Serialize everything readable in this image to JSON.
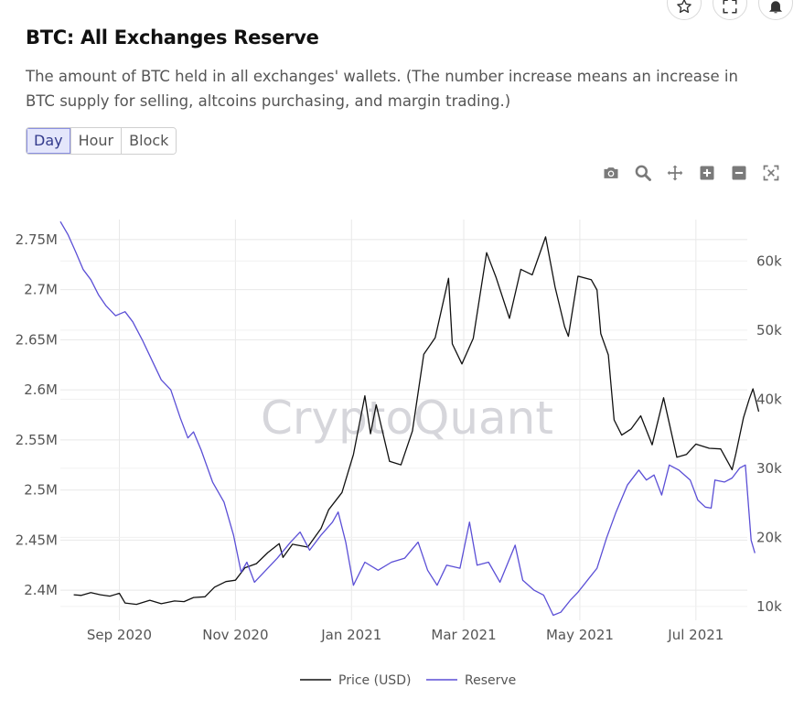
{
  "header": {
    "title": "BTC: All Exchanges Reserve",
    "description": "The amount of BTC held in all exchanges' wallets. (The number increase means an increase in BTC supply for selling, altcoins purchasing, and margin trading.)"
  },
  "top_icons": [
    "star-icon",
    "fullscreen-icon",
    "bell-icon"
  ],
  "range_tabs": {
    "day": "Day",
    "hour": "Hour",
    "block": "Block",
    "selected": "Day"
  },
  "modebar": [
    "camera-icon",
    "zoom-icon",
    "pan-icon",
    "zoom-in-icon",
    "zoom-out-icon",
    "autoscale-icon"
  ],
  "watermark": "CryptoQuant",
  "colors": {
    "price": "#111111",
    "reserve": "#5b4fd6",
    "grid": "#e8e8e8",
    "active_tab_bg": "#e4e6fb"
  },
  "chart_data": {
    "type": "line",
    "x_range": [
      "2020-08-01",
      "2021-07-28"
    ],
    "x_ticks": [
      {
        "date": "2020-09-01",
        "label": "Sep 2020"
      },
      {
        "date": "2020-11-01",
        "label": "Nov 2020"
      },
      {
        "date": "2021-01-01",
        "label": "Jan 2021"
      },
      {
        "date": "2021-03-01",
        "label": "Mar 2021"
      },
      {
        "date": "2021-05-01",
        "label": "May 2021"
      },
      {
        "date": "2021-07-01",
        "label": "Jul 2021"
      }
    ],
    "y_left": {
      "range": [
        2.37,
        2.77
      ],
      "ticks": [
        2.4,
        2.45,
        2.5,
        2.55,
        2.6,
        2.65,
        2.7,
        2.75
      ],
      "tick_labels": [
        "2.4M",
        "2.45M",
        "2.5M",
        "2.55M",
        "2.6M",
        "2.65M",
        "2.7M",
        "2.75M"
      ]
    },
    "y_right": {
      "range": [
        8,
        66
      ],
      "ticks": [
        10,
        20,
        30,
        40,
        50,
        60
      ],
      "tick_labels": [
        "10k",
        "20k",
        "30k",
        "40k",
        "50k",
        "60k"
      ]
    },
    "grid": true,
    "legend_position": "bottom-center",
    "series": [
      {
        "name": "Price (USD)",
        "axis": "right",
        "unit": "k USD",
        "points": [
          [
            "2020-08-08",
            11.7
          ],
          [
            "2020-08-12",
            11.6
          ],
          [
            "2020-08-17",
            12.0
          ],
          [
            "2020-08-22",
            11.7
          ],
          [
            "2020-08-27",
            11.5
          ],
          [
            "2020-09-01",
            11.9
          ],
          [
            "2020-09-04",
            10.5
          ],
          [
            "2020-09-10",
            10.3
          ],
          [
            "2020-09-17",
            10.9
          ],
          [
            "2020-09-23",
            10.4
          ],
          [
            "2020-09-30",
            10.8
          ],
          [
            "2020-10-05",
            10.7
          ],
          [
            "2020-10-10",
            11.3
          ],
          [
            "2020-10-16",
            11.4
          ],
          [
            "2020-10-21",
            12.8
          ],
          [
            "2020-10-27",
            13.6
          ],
          [
            "2020-11-01",
            13.8
          ],
          [
            "2020-11-06",
            15.6
          ],
          [
            "2020-11-12",
            16.2
          ],
          [
            "2020-11-18",
            17.8
          ],
          [
            "2020-11-24",
            19.1
          ],
          [
            "2020-11-26",
            17.1
          ],
          [
            "2020-12-01",
            19.0
          ],
          [
            "2020-12-09",
            18.6
          ],
          [
            "2020-12-16",
            21.3
          ],
          [
            "2020-12-20",
            24.0
          ],
          [
            "2020-12-27",
            26.5
          ],
          [
            "2021-01-02",
            32.0
          ],
          [
            "2021-01-08",
            40.5
          ],
          [
            "2021-01-11",
            35.0
          ],
          [
            "2021-01-14",
            39.2
          ],
          [
            "2021-01-21",
            31.0
          ],
          [
            "2021-01-27",
            30.5
          ],
          [
            "2021-02-02",
            35.4
          ],
          [
            "2021-02-08",
            46.5
          ],
          [
            "2021-02-14",
            48.9
          ],
          [
            "2021-02-21",
            57.5
          ],
          [
            "2021-02-23",
            48.0
          ],
          [
            "2021-02-28",
            45.1
          ],
          [
            "2021-03-06",
            48.8
          ],
          [
            "2021-03-13",
            61.2
          ],
          [
            "2021-03-18",
            57.6
          ],
          [
            "2021-03-25",
            51.7
          ],
          [
            "2021-03-31",
            58.8
          ],
          [
            "2021-04-06",
            58.0
          ],
          [
            "2021-04-13",
            63.5
          ],
          [
            "2021-04-18",
            56.2
          ],
          [
            "2021-04-23",
            50.5
          ],
          [
            "2021-04-25",
            49.1
          ],
          [
            "2021-04-30",
            57.8
          ],
          [
            "2021-05-07",
            57.3
          ],
          [
            "2021-05-10",
            55.8
          ],
          [
            "2021-05-12",
            49.5
          ],
          [
            "2021-05-16",
            46.4
          ],
          [
            "2021-05-19",
            37.0
          ],
          [
            "2021-05-23",
            34.8
          ],
          [
            "2021-05-28",
            35.7
          ],
          [
            "2021-06-02",
            37.6
          ],
          [
            "2021-06-08",
            33.4
          ],
          [
            "2021-06-14",
            40.2
          ],
          [
            "2021-06-21",
            31.6
          ],
          [
            "2021-06-26",
            32.0
          ],
          [
            "2021-07-01",
            33.5
          ],
          [
            "2021-07-08",
            32.9
          ],
          [
            "2021-07-14",
            32.8
          ],
          [
            "2021-07-20",
            29.8
          ],
          [
            "2021-07-22",
            32.1
          ],
          [
            "2021-07-26",
            37.3
          ],
          [
            "2021-07-29",
            40.0
          ],
          [
            "2021-07-31",
            41.5
          ],
          [
            "2021-08-03",
            38.2
          ]
        ]
      },
      {
        "name": "Reserve",
        "axis": "left",
        "unit": "M BTC",
        "points": [
          [
            "2020-08-01",
            2.768
          ],
          [
            "2020-08-05",
            2.755
          ],
          [
            "2020-08-09",
            2.738
          ],
          [
            "2020-08-13",
            2.72
          ],
          [
            "2020-08-17",
            2.71
          ],
          [
            "2020-08-21",
            2.695
          ],
          [
            "2020-08-25",
            2.684
          ],
          [
            "2020-08-30",
            2.674
          ],
          [
            "2020-09-04",
            2.678
          ],
          [
            "2020-09-08",
            2.668
          ],
          [
            "2020-09-13",
            2.65
          ],
          [
            "2020-09-18",
            2.63
          ],
          [
            "2020-09-23",
            2.61
          ],
          [
            "2020-09-28",
            2.6
          ],
          [
            "2020-10-03",
            2.572
          ],
          [
            "2020-10-07",
            2.552
          ],
          [
            "2020-10-10",
            2.558
          ],
          [
            "2020-10-14",
            2.54
          ],
          [
            "2020-10-20",
            2.508
          ],
          [
            "2020-10-26",
            2.488
          ],
          [
            "2020-10-31",
            2.455
          ],
          [
            "2020-11-04",
            2.418
          ],
          [
            "2020-11-07",
            2.428
          ],
          [
            "2020-11-11",
            2.408
          ],
          [
            "2020-11-16",
            2.418
          ],
          [
            "2020-11-23",
            2.432
          ],
          [
            "2020-11-30",
            2.448
          ],
          [
            "2020-12-05",
            2.458
          ],
          [
            "2020-12-10",
            2.44
          ],
          [
            "2020-12-16",
            2.455
          ],
          [
            "2020-12-22",
            2.468
          ],
          [
            "2020-12-25",
            2.478
          ],
          [
            "2020-12-29",
            2.448
          ],
          [
            "2021-01-02",
            2.405
          ],
          [
            "2021-01-08",
            2.428
          ],
          [
            "2021-01-15",
            2.42
          ],
          [
            "2021-01-22",
            2.428
          ],
          [
            "2021-01-29",
            2.432
          ],
          [
            "2021-02-05",
            2.448
          ],
          [
            "2021-02-10",
            2.42
          ],
          [
            "2021-02-15",
            2.405
          ],
          [
            "2021-02-20",
            2.425
          ],
          [
            "2021-02-27",
            2.422
          ],
          [
            "2021-03-04",
            2.468
          ],
          [
            "2021-03-08",
            2.425
          ],
          [
            "2021-03-14",
            2.428
          ],
          [
            "2021-03-20",
            2.408
          ],
          [
            "2021-03-28",
            2.445
          ],
          [
            "2021-04-01",
            2.41
          ],
          [
            "2021-04-07",
            2.4
          ],
          [
            "2021-04-12",
            2.395
          ],
          [
            "2021-04-17",
            2.375
          ],
          [
            "2021-04-21",
            2.378
          ],
          [
            "2021-04-26",
            2.39
          ],
          [
            "2021-04-30",
            2.398
          ],
          [
            "2021-05-05",
            2.41
          ],
          [
            "2021-05-10",
            2.422
          ],
          [
            "2021-05-15",
            2.452
          ],
          [
            "2021-05-20",
            2.478
          ],
          [
            "2021-05-26",
            2.505
          ],
          [
            "2021-06-01",
            2.52
          ],
          [
            "2021-06-05",
            2.51
          ],
          [
            "2021-06-09",
            2.515
          ],
          [
            "2021-06-13",
            2.495
          ],
          [
            "2021-06-17",
            2.525
          ],
          [
            "2021-06-22",
            2.52
          ],
          [
            "2021-06-28",
            2.51
          ],
          [
            "2021-07-02",
            2.49
          ],
          [
            "2021-07-06",
            2.483
          ],
          [
            "2021-07-09",
            2.482
          ],
          [
            "2021-07-11",
            2.51
          ],
          [
            "2021-07-16",
            2.508
          ],
          [
            "2021-07-20",
            2.512
          ],
          [
            "2021-07-24",
            2.522
          ],
          [
            "2021-07-27",
            2.525
          ],
          [
            "2021-07-30",
            2.45
          ],
          [
            "2021-08-01",
            2.437
          ]
        ]
      }
    ]
  }
}
